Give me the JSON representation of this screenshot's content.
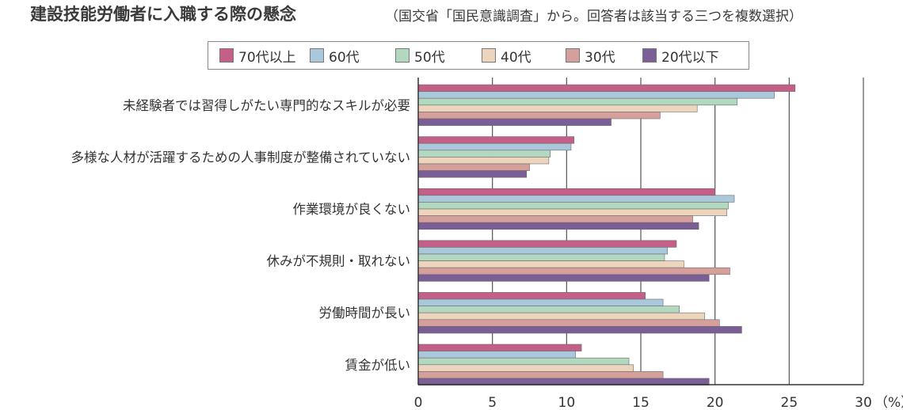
{
  "header": {
    "title": "建設技能労働者に入職する際の懸念",
    "subtitle": "（国交省「国民意識調査」から。回答者は該当する三つを複数選択）"
  },
  "chart_data": {
    "type": "bar",
    "orientation": "horizontal",
    "categories": [
      "未経験者では習得しがたい専門的なスキルが必要",
      "多様な人材が活躍するための人事制度が整備されていない",
      "作業環境が良くない",
      "休みが不規則・取れない",
      "労働時間が長い",
      "賃金が低い"
    ],
    "series": [
      {
        "name": "70代以上",
        "color": "#c45f88",
        "values": [
          25.4,
          10.5,
          20.0,
          17.4,
          15.3,
          11.0
        ]
      },
      {
        "name": "60代",
        "color": "#aac8dc",
        "values": [
          24.0,
          10.3,
          21.3,
          16.8,
          16.5,
          10.6
        ]
      },
      {
        "name": "50代",
        "color": "#b3d8c0",
        "values": [
          21.5,
          8.9,
          20.9,
          16.6,
          17.6,
          14.2
        ]
      },
      {
        "name": "40代",
        "color": "#ecd5bc",
        "values": [
          18.8,
          8.8,
          20.8,
          17.9,
          19.3,
          14.5
        ]
      },
      {
        "name": "30代",
        "color": "#d5a09c",
        "values": [
          16.3,
          7.5,
          18.5,
          21.0,
          20.3,
          16.5
        ]
      },
      {
        "name": "20代以下",
        "color": "#7b5e95",
        "values": [
          13.0,
          7.3,
          18.9,
          19.6,
          21.8,
          19.6
        ]
      }
    ],
    "xlim": [
      0,
      30
    ],
    "xticks": [
      "0",
      "5",
      "10",
      "15",
      "20",
      "25",
      "30"
    ],
    "xunit": "（%）",
    "grid": true,
    "legend_position": "top"
  }
}
